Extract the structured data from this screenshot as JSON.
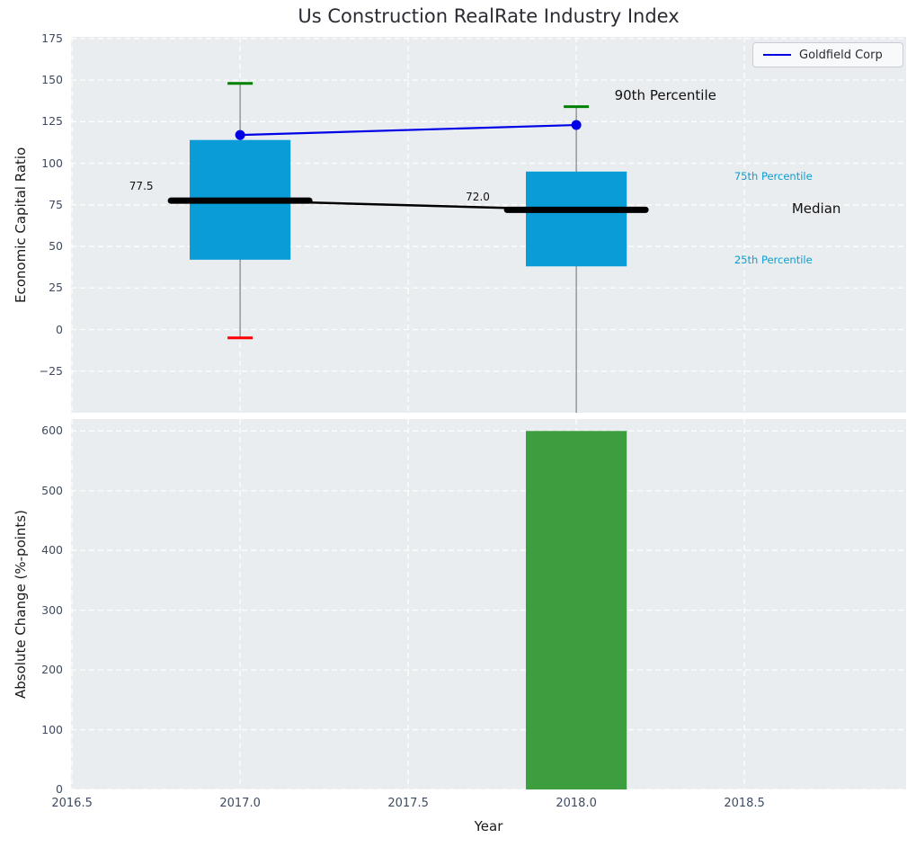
{
  "figure_title": "Us Construction RealRate Industry Index",
  "colors": {
    "plot_background": "#e9edf0",
    "grid": "#ffffff",
    "box_fill": "#0a9cd6",
    "bar_fill": "#3c9e3e",
    "company_line": "#0000e6",
    "median_line": "#000000",
    "whisker": "#808080",
    "cap_high": "#008000",
    "cap_low": "#ff0000",
    "tick_label": "#3e4b60",
    "cyan_annotation": "#0f9ccd",
    "black_annotation": "#111111"
  },
  "chart_data": [
    {
      "id": "top",
      "type": "boxplot-with-line",
      "title": "Us Construction RealRate Industry Index",
      "ylabel": "Economic Capital Ratio",
      "ylim": [
        -50,
        176
      ],
      "xlim": [
        2016.497,
        2018.981
      ],
      "grid": "white-dashed",
      "yticks": {
        "values": [
          175,
          150,
          125,
          100,
          75,
          50,
          25,
          0,
          -25
        ],
        "labels": [
          "175",
          "150",
          "125",
          "100",
          "75",
          "50",
          "25",
          "0",
          "−25"
        ]
      },
      "legend": {
        "position": "upper right",
        "entries": [
          {
            "label": "Goldfield Corp",
            "color": "#0000e6"
          }
        ]
      },
      "boxes": [
        {
          "x": 2017.0,
          "width": 0.3,
          "p10": -5,
          "p25": 42,
          "median": 77.5,
          "p75": 114,
          "p90": 148,
          "median_label": "77.5",
          "lower_whisker_clipped": false
        },
        {
          "x": 2018.0,
          "width": 0.3,
          "p10": null,
          "p25": 38,
          "median": 72.0,
          "p75": 95,
          "p90": 134,
          "median_label": "72.0",
          "lower_whisker_clipped": true
        }
      ],
      "median_trend": {
        "x": [
          2017.0,
          2018.0
        ],
        "y": [
          77.5,
          72.0
        ],
        "color": "#000000"
      },
      "series": [
        {
          "name": "Goldfield Corp",
          "x": [
            2017.0,
            2018.0
          ],
          "y": [
            117,
            123
          ],
          "color": "#0000e6",
          "marker": "circle"
        }
      ],
      "annotations": [
        {
          "text": "77.5",
          "x": 2016.706,
          "y": 86,
          "color": "#111111",
          "size": "sm"
        },
        {
          "text": "72.0",
          "x": 2017.707,
          "y": 80,
          "color": "#111111",
          "size": "sm"
        },
        {
          "text": "90th Percentile",
          "x": 2018.265,
          "y": 141,
          "color": "#111111",
          "size": "lg"
        },
        {
          "text": "75th Percentile",
          "x": 2018.586,
          "y": 92,
          "color": "#0f9ccd",
          "size": "xs"
        },
        {
          "text": "Median",
          "x": 2018.714,
          "y": 73,
          "color": "#111111",
          "size": "lg"
        },
        {
          "text": "25th Percentile",
          "x": 2018.586,
          "y": 42,
          "color": "#0f9ccd",
          "size": "xs"
        }
      ]
    },
    {
      "id": "bottom",
      "type": "bar",
      "ylabel": "Absolute Change (%-points)",
      "xlabel": "Year",
      "ylim": [
        0,
        620
      ],
      "xlim": [
        2016.497,
        2018.981
      ],
      "grid": "white-dashed",
      "yticks": {
        "values": [
          600,
          500,
          400,
          300,
          200,
          100,
          0
        ],
        "labels": [
          "600",
          "500",
          "400",
          "300",
          "200",
          "100",
          "0"
        ]
      },
      "xticks": {
        "values": [
          2016.5,
          2017.0,
          2017.5,
          2018.0,
          2018.5
        ],
        "labels": [
          "2016.5",
          "2017.0",
          "2017.5",
          "2018.0",
          "2018.5"
        ]
      },
      "bars": [
        {
          "x": 2018.0,
          "value": 600,
          "width": 0.3,
          "color": "#3c9e3e"
        }
      ]
    }
  ]
}
